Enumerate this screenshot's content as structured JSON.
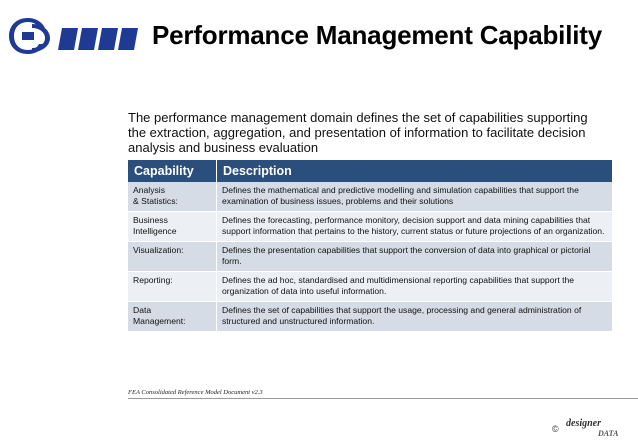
{
  "header": {
    "title": "Performance Management Capability"
  },
  "intro": "The performance management domain defines the set of capabilities supporting the extraction, aggregation, and presentation of information to facilitate decision analysis and business evaluation",
  "table": {
    "headers": [
      "Capability",
      "Description"
    ],
    "rows": [
      {
        "capability": "Analysis\n& Statistics:",
        "description": "Defines the mathematical and predictive modelling and simulation capabilities that support the examination of business issues, problems and their solutions"
      },
      {
        "capability": "Business\nIntelligence",
        "description": "Defines the forecasting, performance monitory, decision support and data mining capabilities that support information that pertains to the history, current status or future projections of an organization."
      },
      {
        "capability": "Visualization:",
        "description": "Defines the presentation capabilities that support the conversion of data into graphical or pictorial form."
      },
      {
        "capability": "Reporting:",
        "description": "Defines the ad hoc, standardised and multidimensional reporting capabilities that support the organization of data into useful information."
      },
      {
        "capability": "Data\nManagement:",
        "description": "Defines the set of capabilities that support the usage, processing and general administration of structured and unstructured information."
      }
    ]
  },
  "footer": {
    "source": "FEA Consolidated Reference Model Document v2.3"
  },
  "brand": {
    "copyright": "©",
    "name": "designer",
    "sub": "DATA"
  },
  "colors": {
    "header_bg": "#2a4f7c",
    "row_odd": "#d6dce5",
    "row_even": "#eceff4",
    "logo_blue": "#1f3a93"
  },
  "icons": [
    "company-logo-icon"
  ]
}
